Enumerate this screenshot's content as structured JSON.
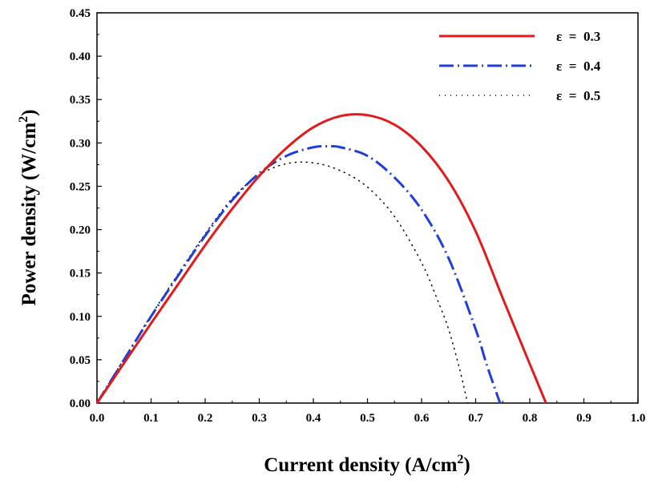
{
  "chart_data": {
    "type": "line",
    "title": "",
    "xlabel": "Current density (A/cm",
    "xlabel_sup": "2",
    "xlabel_end": ")",
    "ylabel": "Power density (W/cm",
    "ylabel_sup": "2",
    "ylabel_end": ")",
    "xlim": [
      0,
      1.0
    ],
    "ylim": [
      0,
      0.45
    ],
    "xticks": [
      "0.0",
      "0.1",
      "0.2",
      "0.3",
      "0.4",
      "0.5",
      "0.6",
      "0.7",
      "0.8",
      "0.9",
      "1.0"
    ],
    "yticks": [
      "0.00",
      "0.05",
      "0.10",
      "0.15",
      "0.20",
      "0.25",
      "0.30",
      "0.35",
      "0.40",
      "0.45"
    ],
    "grid": false,
    "legend_position": "top-right",
    "series": [
      {
        "name": "ε  =  0.3",
        "color": "#e31a1c",
        "style": "solid",
        "x": [
          0,
          0.05,
          0.1,
          0.15,
          0.2,
          0.25,
          0.3,
          0.35,
          0.4,
          0.45,
          0.5,
          0.55,
          0.6,
          0.65,
          0.7,
          0.75,
          0.8,
          0.83
        ],
        "y": [
          0,
          0.046,
          0.092,
          0.137,
          0.182,
          0.224,
          0.262,
          0.294,
          0.318,
          0.331,
          0.332,
          0.321,
          0.296,
          0.256,
          0.198,
          0.121,
          0.045,
          0
        ]
      },
      {
        "name": "ε  =  0.4",
        "color": "#1f3fd8",
        "style": "dashdot",
        "x": [
          0,
          0.05,
          0.1,
          0.15,
          0.2,
          0.25,
          0.3,
          0.35,
          0.4,
          0.43,
          0.45,
          0.5,
          0.55,
          0.6,
          0.65,
          0.7,
          0.72,
          0.745
        ],
        "y": [
          0,
          0.05,
          0.1,
          0.147,
          0.193,
          0.234,
          0.265,
          0.285,
          0.295,
          0.296,
          0.295,
          0.285,
          0.26,
          0.223,
          0.167,
          0.085,
          0.045,
          0
        ]
      },
      {
        "name": "ε  =  0.5",
        "color": "#000000",
        "style": "dotted",
        "x": [
          0,
          0.05,
          0.1,
          0.15,
          0.2,
          0.25,
          0.3,
          0.35,
          0.4,
          0.45,
          0.5,
          0.55,
          0.6,
          0.63,
          0.65,
          0.67,
          0.685
        ],
        "y": [
          0,
          0.051,
          0.101,
          0.149,
          0.195,
          0.236,
          0.263,
          0.276,
          0.277,
          0.268,
          0.249,
          0.215,
          0.162,
          0.118,
          0.085,
          0.04,
          0
        ]
      }
    ]
  }
}
